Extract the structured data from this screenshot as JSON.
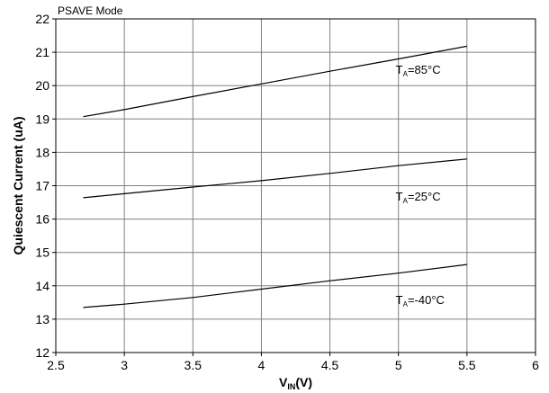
{
  "chart_data": {
    "type": "line",
    "title": "PSAVE Mode",
    "xlabel": {
      "main": "V",
      "sub": "IN",
      "tail": "(V)"
    },
    "ylabel": "Quiescent Current (uA)",
    "xlim": [
      2.5,
      6
    ],
    "ylim": [
      12,
      22
    ],
    "xticks": [
      2.5,
      3,
      3.5,
      4,
      4.5,
      5,
      5.5,
      6
    ],
    "xtick_labels": [
      "2.5",
      "3",
      "3.5",
      "4",
      "4.5",
      "5",
      "5.5",
      "6"
    ],
    "yticks": [
      12,
      13,
      14,
      15,
      16,
      17,
      18,
      19,
      20,
      21,
      22
    ],
    "ytick_labels": [
      "12",
      "13",
      "14",
      "15",
      "16",
      "17",
      "18",
      "19",
      "20",
      "21",
      "22"
    ],
    "grid": true,
    "series": [
      {
        "label": {
          "main": "T",
          "sub": "A",
          "tail": "=85°C"
        },
        "x": [
          2.7,
          3.0,
          3.5,
          4.0,
          4.5,
          5.0,
          5.5
        ],
        "y": [
          19.07,
          19.28,
          19.67,
          20.05,
          20.43,
          20.8,
          21.18
        ],
        "label_at": [
          4.0,
          20.35
        ]
      },
      {
        "label": {
          "main": "T",
          "sub": "A",
          "tail": "=25°C"
        },
        "x": [
          2.7,
          3.0,
          3.5,
          4.0,
          4.5,
          5.0,
          5.5
        ],
        "y": [
          16.64,
          16.76,
          16.96,
          17.15,
          17.37,
          17.6,
          17.8
        ],
        "label_at": [
          4.0,
          16.55
        ]
      },
      {
        "label": {
          "main": "T",
          "sub": "A",
          "tail": "=-40°C"
        },
        "x": [
          2.7,
          3.0,
          3.5,
          4.0,
          4.5,
          5.0,
          5.5
        ],
        "y": [
          13.35,
          13.45,
          13.65,
          13.9,
          14.15,
          14.38,
          14.64
        ],
        "label_at": [
          4.0,
          13.45
        ]
      }
    ],
    "colors": {
      "line": "#000000",
      "grid": "#808080",
      "axis": "#000000"
    }
  }
}
